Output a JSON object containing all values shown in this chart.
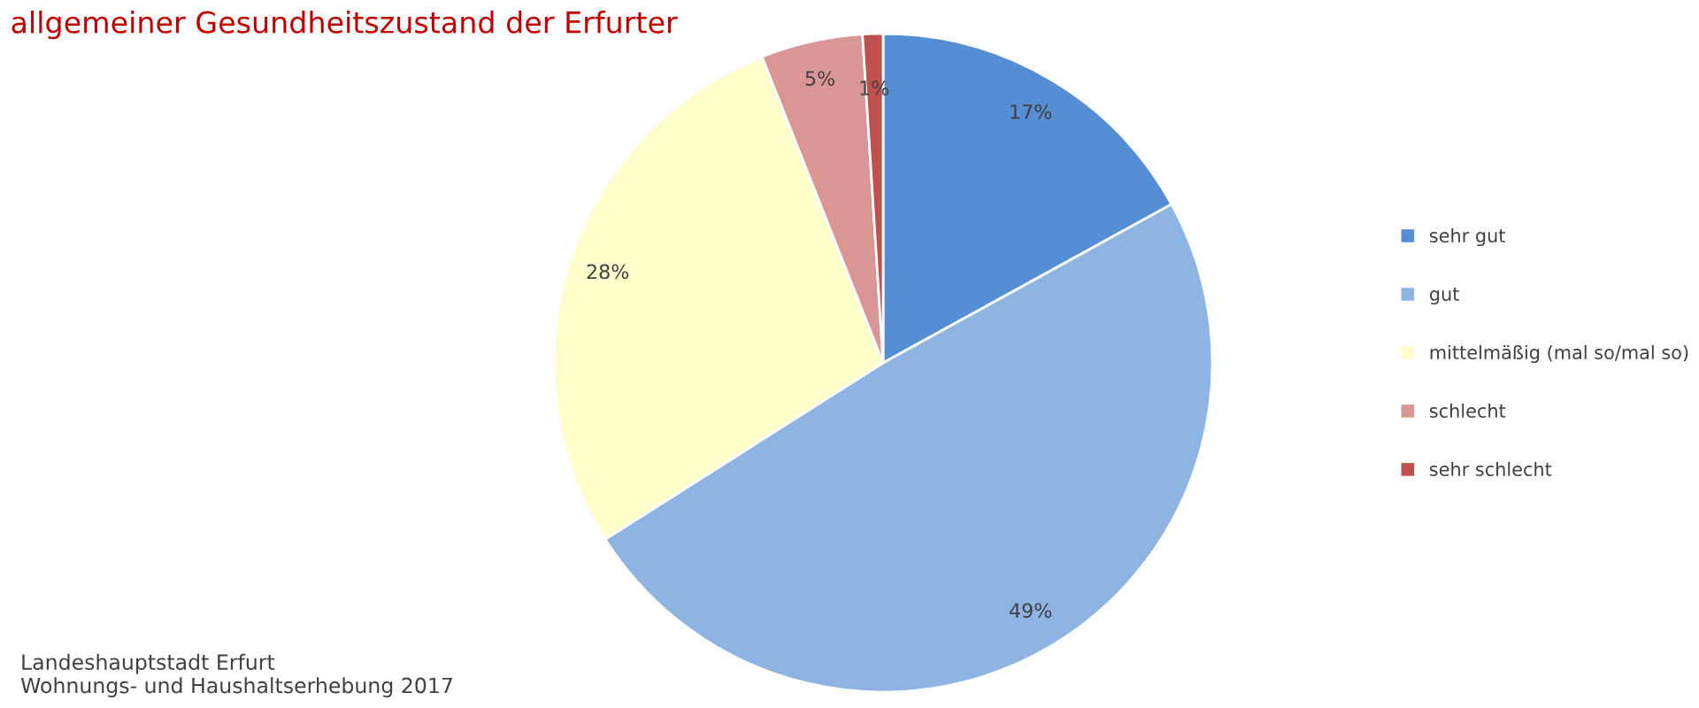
{
  "chart_data": {
    "type": "pie",
    "title": "allgemeiner Gesundheitszustand der Erfurter",
    "categories": [
      "sehr gut",
      "gut",
      "mittelmäßig (mal so/mal so)",
      "schlecht",
      "sehr schlecht"
    ],
    "values": [
      17,
      49,
      28,
      5,
      1
    ],
    "colors": [
      "#558ed5",
      "#8eb4e3",
      "#ffffcc",
      "#d99694",
      "#c0504d"
    ],
    "value_labels": [
      "17%",
      "49%",
      "28%",
      "5%",
      "1%"
    ],
    "legend": "right",
    "annotations": [
      "Landeshauptstadt Erfurt\nWohnungs- und Haushaltserhebung 2017"
    ]
  }
}
